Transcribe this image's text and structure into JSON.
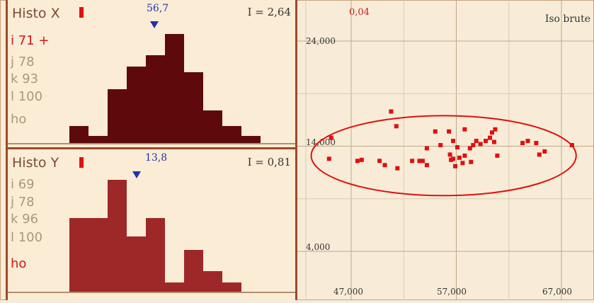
{
  "histo_x": {
    "title": "Histo X",
    "value": "56,7",
    "intensity": "I = 2,64",
    "items": [
      {
        "text": "i 71 +",
        "active": true
      },
      {
        "text": "j 78",
        "active": false
      },
      {
        "text": "k 93",
        "active": false
      },
      {
        "text": "l 100",
        "active": false
      },
      {
        "text": "ho",
        "active": false
      }
    ],
    "bars": [
      0.12,
      0.05,
      0.38,
      0.54,
      0.62,
      0.77,
      0.5,
      0.23,
      0.12,
      0.05
    ],
    "color": "#5e0a0a"
  },
  "histo_y": {
    "title": "Histo Y",
    "value": "13,8",
    "intensity": "I = 0,81",
    "items": [
      {
        "text": "i 69",
        "active": false
      },
      {
        "text": "j 78",
        "active": false
      },
      {
        "text": "k 96",
        "active": false
      },
      {
        "text": "l 100",
        "active": false
      },
      {
        "text": "ho",
        "active": true
      }
    ],
    "bars": [
      0.65,
      0.65,
      0.99,
      0.49,
      0.65,
      0.08,
      0.37,
      0.18,
      0.08
    ],
    "color": "#9e2828"
  },
  "scatter": {
    "corner_value": "0,04",
    "mode": "Iso brute",
    "y_ticks": [
      "24,000",
      "14,000",
      "4,000"
    ],
    "x_ticks": [
      "47,000",
      "57,000",
      "67,000"
    ],
    "point_color": "#e01010"
  },
  "chart_data": {
    "type": "scatter",
    "title": "",
    "xlabel": "",
    "ylabel": "",
    "xlim": [
      44000,
      70000
    ],
    "ylim": [
      1000,
      27000
    ],
    "x_ticks": [
      47000,
      57000,
      67000
    ],
    "y_ticks": [
      24000,
      14000,
      4000
    ],
    "grid": true,
    "ellipse": {
      "cx": 55800,
      "cy": 13100,
      "rx": 12600,
      "ry": 3800
    },
    "points": [
      [
        50800,
        17300
      ],
      [
        51300,
        15900
      ],
      [
        49700,
        12600
      ],
      [
        50200,
        12200
      ],
      [
        51400,
        11900
      ],
      [
        52800,
        12600
      ],
      [
        53500,
        12600
      ],
      [
        54200,
        12200
      ],
      [
        53800,
        12600
      ],
      [
        55500,
        14100
      ],
      [
        54200,
        13800
      ],
      [
        55000,
        15400
      ],
      [
        56300,
        15400
      ],
      [
        56700,
        14500
      ],
      [
        57100,
        13900
      ],
      [
        56400,
        13200
      ],
      [
        56700,
        12800
      ],
      [
        56900,
        12100
      ],
      [
        57300,
        12900
      ],
      [
        57800,
        13100
      ],
      [
        58300,
        13800
      ],
      [
        58600,
        14100
      ],
      [
        58900,
        14500
      ],
      [
        59300,
        14200
      ],
      [
        59800,
        14500
      ],
      [
        60200,
        14800
      ],
      [
        60600,
        14400
      ],
      [
        60400,
        15300
      ],
      [
        60700,
        15600
      ],
      [
        60900,
        13100
      ],
      [
        57800,
        15600
      ],
      [
        57600,
        12400
      ],
      [
        58400,
        12500
      ],
      [
        65400,
        13500
      ],
      [
        64900,
        13200
      ],
      [
        64600,
        14300
      ],
      [
        68000,
        14100
      ],
      [
        63300,
        14300
      ],
      [
        63800,
        14500
      ],
      [
        45100,
        14800
      ],
      [
        44900,
        12800
      ],
      [
        48000,
        12700
      ],
      [
        47600,
        12600
      ],
      [
        56500,
        12700
      ]
    ]
  }
}
